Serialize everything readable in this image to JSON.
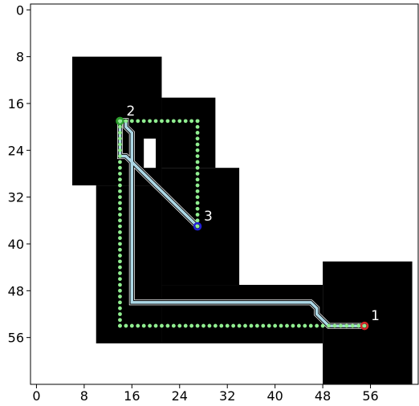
{
  "chart_data": {
    "type": "path-plot",
    "xlim": [
      -1,
      64
    ],
    "ylim": [
      64,
      -1
    ],
    "xticks": [
      0,
      8,
      16,
      24,
      32,
      40,
      48,
      56
    ],
    "yticks": [
      0,
      8,
      16,
      24,
      32,
      40,
      48,
      56
    ],
    "xtick_labels": [
      "0",
      "8",
      "16",
      "24",
      "32",
      "40",
      "48",
      "56"
    ],
    "ytick_labels": [
      "0",
      "8",
      "16",
      "24",
      "32",
      "40",
      "48",
      "56"
    ],
    "obstacles": [
      {
        "x0": 6,
        "y0": 8,
        "x1": 21,
        "y1": 30
      },
      {
        "x0": 10,
        "y0": 30,
        "x1": 21,
        "y1": 57
      },
      {
        "x0": 21,
        "y0": 15,
        "x1": 30,
        "y1": 27
      },
      {
        "x0": 21,
        "y0": 27,
        "x1": 34,
        "y1": 47
      },
      {
        "x0": 21,
        "y0": 47,
        "x1": 48,
        "y1": 57
      },
      {
        "x0": 48,
        "y0": 43,
        "x1": 63,
        "y1": 64
      }
    ],
    "free_cells": [
      {
        "x0": 18,
        "y0": 22,
        "x1": 20,
        "y1": 27
      }
    ],
    "explored_path": [
      [
        55,
        54
      ],
      [
        53,
        54
      ],
      [
        51,
        54
      ],
      [
        49,
        54
      ],
      [
        48,
        53
      ],
      [
        47,
        52
      ],
      [
        47,
        51
      ],
      [
        46,
        50
      ],
      [
        16,
        50
      ],
      [
        16,
        21
      ],
      [
        15,
        20
      ],
      [
        15,
        19
      ],
      [
        14,
        19
      ],
      [
        14,
        25
      ],
      [
        15,
        25
      ],
      [
        16,
        26
      ],
      [
        17,
        27
      ],
      [
        18,
        28
      ],
      [
        19,
        29
      ],
      [
        20,
        30
      ],
      [
        21,
        31
      ],
      [
        22,
        32
      ],
      [
        23,
        33
      ],
      [
        24,
        34
      ],
      [
        25,
        35
      ],
      [
        26,
        36
      ],
      [
        27,
        37
      ]
    ],
    "planned_path": [
      [
        55,
        54
      ],
      [
        49,
        54
      ],
      [
        48,
        53
      ],
      [
        47,
        52
      ],
      [
        47,
        51
      ],
      [
        46,
        50
      ],
      [
        16,
        50
      ],
      [
        16,
        21
      ],
      [
        15,
        20
      ],
      [
        15,
        19
      ],
      [
        14,
        19
      ],
      [
        14,
        25
      ],
      [
        15,
        25
      ],
      [
        16,
        26
      ],
      [
        17,
        27
      ],
      [
        18,
        28
      ],
      [
        19,
        29
      ],
      [
        20,
        30
      ],
      [
        21,
        31
      ],
      [
        22,
        32
      ],
      [
        23,
        33
      ],
      [
        24,
        34
      ],
      [
        25,
        35
      ],
      [
        26,
        36
      ],
      [
        27,
        37
      ]
    ],
    "waypoint_route": [
      [
        55,
        54
      ],
      [
        14,
        54
      ],
      [
        14,
        19
      ],
      [
        27,
        19
      ],
      [
        27,
        37
      ]
    ],
    "markers": [
      {
        "label": "1",
        "x": 55,
        "y": 54,
        "color": "#d62728"
      },
      {
        "label": "2",
        "x": 14,
        "y": 19,
        "color": "#2ca02c"
      },
      {
        "label": "3",
        "x": 27,
        "y": 37,
        "color": "#1f1fd6"
      }
    ],
    "colors": {
      "obstacle": "#000000",
      "free": "#ffffff",
      "explored_path": "#add8e6",
      "waypoint_dots": "#90ee90"
    }
  }
}
